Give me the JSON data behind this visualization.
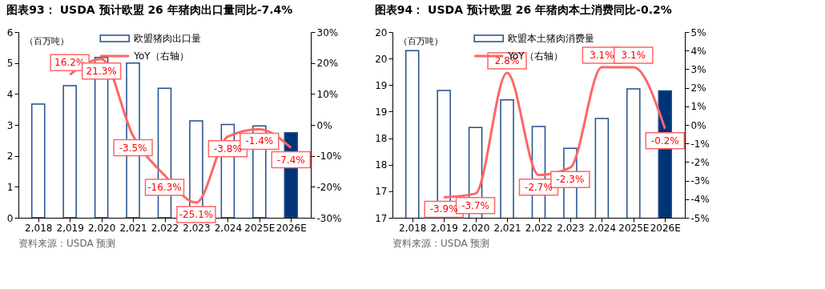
{
  "chart_data": [
    {
      "type": "bar",
      "title": "图表93：  USDA 预计欧盟 26 年猪肉出口量同比-7.4%",
      "categories": [
        "2,018",
        "2,019",
        "2,020",
        "2,021",
        "2,022",
        "2,023",
        "2,024",
        "2025E",
        "2026E"
      ],
      "series": [
        {
          "name": "欧盟猪肉出口量",
          "color": "#1f4e8c",
          "colors": [
            "#ffffff",
            "#ffffff",
            "#ffffff",
            "#ffffff",
            "#ffffff",
            "#ffffff",
            "#ffffff",
            "#ffffff",
            "#003478"
          ],
          "values": [
            3.67,
            4.27,
            5.18,
            5.0,
            4.18,
            3.13,
            3.01,
            2.97,
            2.75
          ]
        },
        {
          "name": "YoY（右轴）",
          "type": "line",
          "axis": "y2",
          "color": "#ff6666",
          "values": [
            null,
            16.2,
            21.3,
            -3.5,
            -16.3,
            -25.1,
            -3.8,
            -1.4,
            -7.4
          ],
          "value_labels": [
            null,
            "16.2%",
            "21.3%",
            "-3.5%",
            "-16.3%",
            "-25.1%",
            "-3.8%",
            "-1.4%",
            "-7.4%"
          ]
        }
      ],
      "ylim": [
        0,
        6
      ],
      "yticks": [
        0,
        1,
        2,
        3,
        4,
        5,
        6
      ],
      "y2lim": [
        -30,
        30
      ],
      "y2ticks": [
        {
          "value": -30,
          "label": "-30%"
        },
        {
          "value": -20,
          "label": "-20%"
        },
        {
          "value": -10,
          "label": "-10%"
        },
        {
          "value": 0,
          "label": "0%"
        },
        {
          "value": 10,
          "label": "10%"
        },
        {
          "value": 20,
          "label": "20%"
        },
        {
          "value": 30,
          "label": "30%"
        }
      ],
      "legend": "top",
      "grid": false,
      "annotations": [
        "（百万吨）",
        "资料来源：USDA 预测"
      ]
    },
    {
      "type": "bar",
      "title": "图表94：  USDA 预计欧盟 26 年猪肉本土消费同比-0.2%",
      "categories": [
        "2,018",
        "2,019",
        "2,020",
        "2,021",
        "2,022",
        "2,023",
        "2,024",
        "2025E",
        "2026E"
      ],
      "series": [
        {
          "name": "欧盟本土猪肉消费量",
          "color": "#1f4e8c",
          "colors": [
            "#ffffff",
            "#ffffff",
            "#ffffff",
            "#ffffff",
            "#ffffff",
            "#ffffff",
            "#ffffff",
            "#ffffff",
            "#003478"
          ],
          "values": [
            20.15,
            19.4,
            18.7,
            19.22,
            18.72,
            18.31,
            18.87,
            19.43,
            19.39
          ]
        },
        {
          "name": "YoY（右轴）",
          "type": "line",
          "axis": "y2",
          "color": "#ff6666",
          "values": [
            null,
            -3.9,
            -3.7,
            2.8,
            -2.7,
            -2.3,
            3.1,
            3.1,
            -0.2
          ],
          "value_labels": [
            null,
            "-3.9%",
            "-3.7%",
            "2.8%",
            "-2.7%",
            "-2.3%",
            "3.1%",
            "3.1%",
            "-0.2%"
          ]
        }
      ],
      "ylim": [
        17,
        20.5
      ],
      "yticks": [
        17,
        {
          "value": 17.5,
          "label": "17"
        },
        18,
        {
          "value": 18.5,
          "label": "18"
        },
        19,
        {
          "value": 19.5,
          "label": "19"
        },
        20,
        {
          "value": 20.5,
          "label": "20"
        }
      ],
      "y2lim": [
        -5,
        5
      ],
      "y2ticks": [
        {
          "value": -5,
          "label": "-5%"
        },
        {
          "value": -4,
          "label": "-4%"
        },
        {
          "value": -3,
          "label": "-3%"
        },
        {
          "value": -2,
          "label": "-2%"
        },
        {
          "value": -1,
          "label": "-1%"
        },
        {
          "value": 0,
          "label": "0%"
        },
        {
          "value": 1,
          "label": "1%"
        },
        {
          "value": 2,
          "label": "2%"
        },
        {
          "value": 3,
          "label": "3%"
        },
        {
          "value": 4,
          "label": "4%"
        },
        {
          "value": 5,
          "label": "5%"
        }
      ],
      "legend": "top",
      "grid": false,
      "annotations": [
        "（百万吨）",
        "资料来源：USDA 预测"
      ]
    }
  ]
}
